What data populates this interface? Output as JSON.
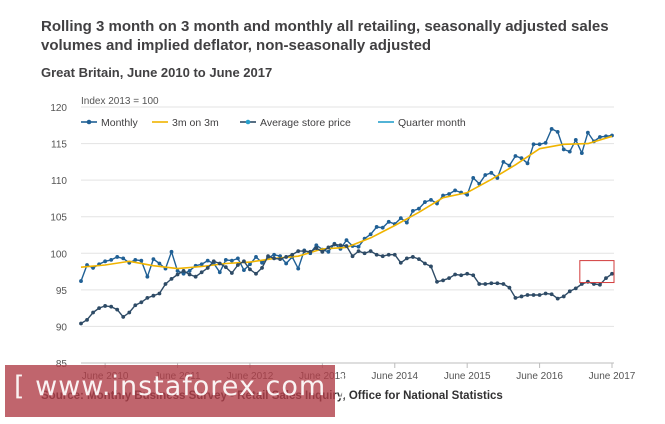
{
  "header": {
    "title": "Rolling 3 month on 3 month and monthly all retailing, seasonally adjusted sales volumes and implied deflator, non-seasonally adjusted",
    "subtitle": "Great Britain, June 2010 to June 2017"
  },
  "footer": {
    "source": "Source: Monthly Business Survey - Retail Sales Inquiry, Office for National Statistics"
  },
  "watermark": {
    "text": "[ www.instaforex.com ]"
  },
  "chart_data": {
    "type": "line",
    "unit_label": "Index 2013 = 100",
    "ylim": [
      85,
      120
    ],
    "yticks": [
      85,
      90,
      95,
      100,
      105,
      110,
      115,
      120
    ],
    "xticks": [
      "June 2010",
      "June 2011",
      "June 2012",
      "June 2013",
      "June 2014",
      "June 2015",
      "June 2016",
      "June 2017"
    ],
    "x_range": [
      "Feb 2010",
      "Jun 2017"
    ],
    "grid": "horizontal",
    "legend_position": "top",
    "highlight": {
      "label": "highlight-box",
      "x_from": "Jan 2017",
      "x_to": "Jun 2017",
      "y_from": 96,
      "y_to": 99
    },
    "series": [
      {
        "name": "Monthly",
        "color": "#206095",
        "marker": "dot",
        "x": [
          "2010-02",
          "2010-03",
          "2010-04",
          "2010-05",
          "2010-06",
          "2010-07",
          "2010-08",
          "2010-09",
          "2010-10",
          "2010-11",
          "2010-12",
          "2011-01",
          "2011-02",
          "2011-03",
          "2011-04",
          "2011-05",
          "2011-06",
          "2011-07",
          "2011-08",
          "2011-09",
          "2011-10",
          "2011-11",
          "2011-12",
          "2012-01",
          "2012-02",
          "2012-03",
          "2012-04",
          "2012-05",
          "2012-06",
          "2012-07",
          "2012-08",
          "2012-09",
          "2012-10",
          "2012-11",
          "2012-12",
          "2013-01",
          "2013-02",
          "2013-03",
          "2013-04",
          "2013-05",
          "2013-06",
          "2013-07",
          "2013-08",
          "2013-09",
          "2013-10",
          "2013-11",
          "2013-12",
          "2014-01",
          "2014-02",
          "2014-03",
          "2014-04",
          "2014-05",
          "2014-06",
          "2014-07",
          "2014-08",
          "2014-09",
          "2014-10",
          "2014-11",
          "2014-12",
          "2015-01",
          "2015-02",
          "2015-03",
          "2015-04",
          "2015-05",
          "2015-06",
          "2015-07",
          "2015-08",
          "2015-09",
          "2015-10",
          "2015-11",
          "2015-12",
          "2016-01",
          "2016-02",
          "2016-03",
          "2016-04",
          "2016-05",
          "2016-06",
          "2016-07",
          "2016-08",
          "2016-09",
          "2016-10",
          "2016-11",
          "2016-12",
          "2017-01",
          "2017-02",
          "2017-03",
          "2017-04",
          "2017-05",
          "2017-06"
        ],
        "values": [
          96.2,
          98.4,
          98.0,
          98.5,
          98.9,
          99.1,
          99.5,
          99.3,
          98.7,
          99.1,
          99.0,
          96.8,
          99.2,
          98.6,
          97.9,
          100.2,
          97.6,
          97.2,
          97.6,
          98.3,
          98.5,
          99.0,
          98.6,
          97.4,
          99.1,
          99.0,
          99.3,
          97.7,
          98.5,
          99.5,
          98.7,
          99.4,
          99.8,
          99.6,
          98.6,
          99.5,
          97.9,
          100.4,
          100.0,
          101.1,
          100.5,
          100.2,
          101.3,
          100.6,
          101.8,
          101.0,
          100.9,
          102.0,
          102.6,
          103.6,
          103.5,
          104.3,
          104.0,
          104.8,
          104.2,
          105.8,
          106.1,
          107.0,
          107.3,
          106.8,
          107.9,
          108.1,
          108.6,
          108.3,
          108.0,
          110.3,
          109.5,
          110.7,
          111.0,
          110.3,
          112.5,
          112.0,
          113.3,
          113.0,
          112.3,
          114.9,
          114.9,
          115.1,
          117.0,
          116.6,
          114.2,
          113.9,
          115.5,
          113.7,
          116.5,
          115.3,
          115.9,
          116.0,
          116.1
        ]
      },
      {
        "name": "3m on 3m",
        "color": "#F0B400",
        "marker": "none",
        "x": [
          "2010-02",
          "2010-06",
          "2010-10",
          "2011-02",
          "2011-06",
          "2011-10",
          "2012-02",
          "2012-06",
          "2012-10",
          "2013-02",
          "2013-06",
          "2013-10",
          "2014-02",
          "2014-06",
          "2014-10",
          "2015-02",
          "2015-06",
          "2015-10",
          "2016-02",
          "2016-06",
          "2016-10",
          "2017-02",
          "2017-06"
        ],
        "values": [
          98.1,
          98.4,
          98.9,
          98.3,
          97.9,
          98.2,
          98.6,
          98.8,
          99.3,
          99.6,
          100.6,
          100.8,
          102.1,
          103.8,
          105.6,
          107.6,
          108.3,
          110.1,
          112.1,
          114.3,
          114.9,
          115.0,
          116.0
        ]
      },
      {
        "name": "Average store price",
        "color": "#27A0CC",
        "line_color": "#2E4B66",
        "marker": "dot",
        "x": [
          "2010-02",
          "2010-03",
          "2010-04",
          "2010-05",
          "2010-06",
          "2010-07",
          "2010-08",
          "2010-09",
          "2010-10",
          "2010-11",
          "2010-12",
          "2011-01",
          "2011-02",
          "2011-03",
          "2011-04",
          "2011-05",
          "2011-06",
          "2011-07",
          "2011-08",
          "2011-09",
          "2011-10",
          "2011-11",
          "2011-12",
          "2012-01",
          "2012-02",
          "2012-03",
          "2012-04",
          "2012-05",
          "2012-06",
          "2012-07",
          "2012-08",
          "2012-09",
          "2012-10",
          "2012-11",
          "2012-12",
          "2013-01",
          "2013-02",
          "2013-03",
          "2013-04",
          "2013-05",
          "2013-06",
          "2013-07",
          "2013-08",
          "2013-09",
          "2013-10",
          "2013-11",
          "2013-12",
          "2014-01",
          "2014-02",
          "2014-03",
          "2014-04",
          "2014-05",
          "2014-06",
          "2014-07",
          "2014-08",
          "2014-09",
          "2014-10",
          "2014-11",
          "2014-12",
          "2015-01",
          "2015-02",
          "2015-03",
          "2015-04",
          "2015-05",
          "2015-06",
          "2015-07",
          "2015-08",
          "2015-09",
          "2015-10",
          "2015-11",
          "2015-12",
          "2016-01",
          "2016-02",
          "2016-03",
          "2016-04",
          "2016-05",
          "2016-06",
          "2016-07",
          "2016-08",
          "2016-09",
          "2016-10",
          "2016-11",
          "2016-12",
          "2017-01",
          "2017-02",
          "2017-03",
          "2017-04",
          "2017-05",
          "2017-06"
        ],
        "values": [
          90.4,
          90.9,
          91.9,
          92.5,
          92.8,
          92.7,
          92.3,
          91.3,
          91.9,
          92.9,
          93.3,
          93.9,
          94.2,
          94.5,
          95.8,
          96.5,
          97.1,
          97.6,
          97.1,
          96.8,
          97.4,
          98.0,
          98.9,
          98.6,
          98.1,
          97.3,
          98.4,
          98.9,
          97.8,
          97.2,
          98.0,
          99.6,
          99.3,
          99.2,
          99.5,
          99.8,
          100.3,
          100.3,
          100.2,
          100.7,
          100.2,
          100.8,
          101.2,
          101.1,
          101.0,
          99.6,
          100.3,
          100.0,
          100.3,
          99.8,
          99.6,
          99.8,
          99.8,
          98.7,
          99.3,
          99.5,
          99.2,
          98.6,
          98.2,
          96.1,
          96.3,
          96.6,
          97.1,
          97.0,
          97.2,
          97.0,
          95.8,
          95.8,
          95.9,
          95.9,
          95.8,
          95.3,
          93.9,
          94.1,
          94.3,
          94.3,
          94.3,
          94.5,
          94.4,
          93.8,
          94.1,
          94.8,
          95.2,
          95.8,
          96.1,
          95.8,
          95.7,
          96.6,
          97.2
        ]
      },
      {
        "name": "Quarter month",
        "color": "#27A0CC",
        "marker": "none",
        "x": [],
        "values": []
      }
    ]
  }
}
